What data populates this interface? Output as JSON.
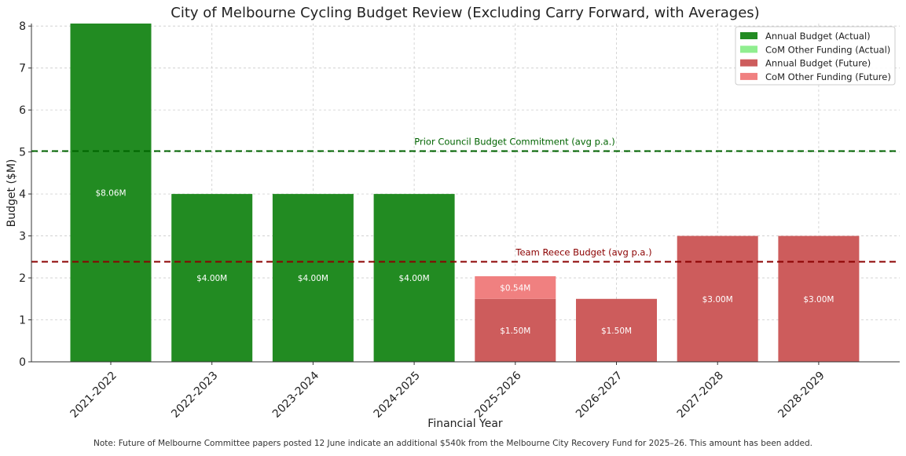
{
  "chart_data": {
    "type": "bar",
    "title": "City of Melbourne Cycling Budget Review (Excluding Carry Forward, with Averages)",
    "xlabel": "Financial Year",
    "ylabel": "Budget ($M)",
    "ylim": [
      0,
      8.06
    ],
    "yticks": [
      0,
      1,
      2,
      3,
      4,
      5,
      6,
      7,
      8
    ],
    "grid": true,
    "legend_position": "top-right",
    "categories": [
      "2021-2022",
      "2022-2023",
      "2023-2024",
      "2024-2025",
      "2025-2026",
      "2026-2027",
      "2027-2028",
      "2028-2029"
    ],
    "series": [
      {
        "name": "Annual Budget (Actual)",
        "color": "#228B22",
        "values": [
          8.06,
          4.0,
          4.0,
          4.0,
          0,
          0,
          0,
          0
        ],
        "labels": [
          "$8.06M",
          "$4.00M",
          "$4.00M",
          "$4.00M",
          "",
          "",
          "",
          ""
        ]
      },
      {
        "name": "CoM Other Funding (Actual)",
        "color": "#90EE90",
        "values": [
          0,
          0,
          0,
          0,
          0,
          0,
          0,
          0
        ],
        "labels": [
          "",
          "",
          "",
          "",
          "",
          "",
          "",
          ""
        ]
      },
      {
        "name": "Annual Budget (Future)",
        "color": "#CD5C5C",
        "values": [
          0,
          0,
          0,
          0,
          1.5,
          1.5,
          3.0,
          3.0
        ],
        "labels": [
          "",
          "",
          "",
          "",
          "$1.50M",
          "$1.50M",
          "$3.00M",
          "$3.00M"
        ]
      },
      {
        "name": "CoM Other Funding (Future)",
        "color": "#F08080",
        "values": [
          0,
          0,
          0,
          0,
          0.54,
          0,
          0,
          0
        ],
        "labels": [
          "",
          "",
          "",
          "",
          "$0.54M",
          "",
          "",
          ""
        ]
      }
    ],
    "reference_lines": [
      {
        "label": "Prior Council Budget Commitment (avg p.a.)",
        "value": 5.02,
        "color": "#006400"
      },
      {
        "label": "Team Reece Budget (avg p.a.)",
        "value": 2.385,
        "color": "#8B0000"
      }
    ]
  },
  "note": "Note: Future of Melbourne Committee papers posted 12 June indicate an additional $540k from the Melbourne City Recovery Fund for 2025–26. This amount has been added."
}
